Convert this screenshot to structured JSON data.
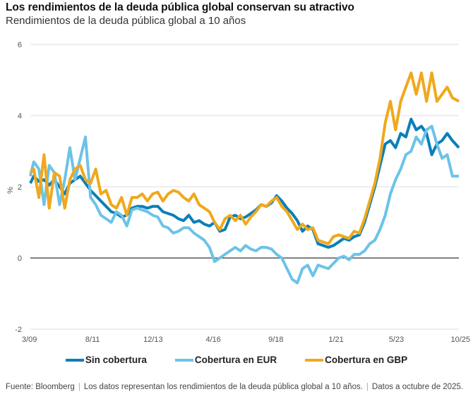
{
  "header": {
    "title": "Los rendimientos de la deuda pública global conservan su atractivo",
    "subtitle": "Rendimientos de la deuda pública global a 10 años"
  },
  "footer": {
    "source": "Fuente: Bloomberg",
    "note": "Los datos representan los rendimientos de la deuda pública global a 10 años.",
    "date": "Datos a octubre de 2025."
  },
  "chart_data": {
    "type": "line",
    "title": "Los rendimientos de la deuda pública global conservan su atractivo",
    "subtitle": "Rendimientos de la deuda pública global a 10 años",
    "xlabel": "",
    "ylabel": "%",
    "ylim": [
      -2,
      6
    ],
    "xlim": [
      2009.17,
      2025.75
    ],
    "yticks": [
      -2,
      0,
      2,
      4,
      6
    ],
    "ytick_labels": [
      "-2",
      "0",
      "2",
      "4",
      "6"
    ],
    "xticks": [
      2009.17,
      2011.58,
      2013.92,
      2016.25,
      2018.67,
      2021.0,
      2023.33,
      2025.75
    ],
    "xtick_labels": [
      "3/09",
      "8/11",
      "12/13",
      "4/16",
      "9/18",
      "1/21",
      "5/23",
      "10/25"
    ],
    "grid": true,
    "legend": "bottom-center",
    "series": [
      {
        "name": "Sin cobertura",
        "color": "#0a7fb9",
        "x": [
          2009.17,
          2009.3,
          2009.5,
          2009.7,
          2009.9,
          2010.1,
          2010.3,
          2010.5,
          2010.7,
          2010.9,
          2011.1,
          2011.3,
          2011.5,
          2011.7,
          2011.9,
          2012.1,
          2012.3,
          2012.5,
          2012.7,
          2012.9,
          2013.1,
          2013.3,
          2013.5,
          2013.7,
          2013.9,
          2014.1,
          2014.3,
          2014.5,
          2014.7,
          2014.9,
          2015.1,
          2015.3,
          2015.5,
          2015.7,
          2015.9,
          2016.1,
          2016.3,
          2016.5,
          2016.7,
          2016.9,
          2017.1,
          2017.3,
          2017.5,
          2017.7,
          2017.9,
          2018.1,
          2018.3,
          2018.5,
          2018.7,
          2018.9,
          2019.1,
          2019.3,
          2019.5,
          2019.7,
          2019.9,
          2020.1,
          2020.3,
          2020.5,
          2020.7,
          2020.9,
          2021.1,
          2021.3,
          2021.5,
          2021.7,
          2021.9,
          2022.1,
          2022.3,
          2022.5,
          2022.7,
          2022.9,
          2023.1,
          2023.3,
          2023.5,
          2023.7,
          2023.9,
          2024.1,
          2024.3,
          2024.5,
          2024.7,
          2024.9,
          2025.1,
          2025.3,
          2025.5,
          2025.75
        ],
        "values": [
          2.1,
          2.3,
          2.15,
          2.2,
          2.05,
          2.2,
          2.0,
          1.8,
          2.1,
          2.2,
          2.3,
          2.1,
          1.9,
          1.75,
          1.6,
          1.45,
          1.3,
          1.25,
          1.15,
          1.2,
          1.4,
          1.45,
          1.45,
          1.4,
          1.45,
          1.45,
          1.3,
          1.25,
          1.2,
          1.1,
          1.05,
          1.2,
          1.0,
          1.05,
          0.95,
          0.9,
          1.0,
          0.75,
          0.8,
          1.15,
          1.2,
          1.1,
          1.15,
          1.25,
          1.35,
          1.5,
          1.45,
          1.55,
          1.75,
          1.6,
          1.4,
          1.25,
          1.05,
          0.75,
          0.9,
          0.8,
          0.4,
          0.35,
          0.3,
          0.35,
          0.45,
          0.55,
          0.5,
          0.6,
          0.65,
          1.0,
          1.5,
          2.0,
          2.6,
          3.2,
          3.3,
          3.1,
          3.5,
          3.4,
          3.9,
          3.6,
          3.7,
          3.5,
          2.9,
          3.2,
          3.3,
          3.5,
          3.3,
          3.1
        ]
      },
      {
        "name": "Cobertura en EUR",
        "color": "#6cc3e8",
        "x": [
          2009.17,
          2009.3,
          2009.5,
          2009.7,
          2009.9,
          2010.1,
          2010.3,
          2010.5,
          2010.7,
          2010.9,
          2011.1,
          2011.3,
          2011.5,
          2011.7,
          2011.9,
          2012.1,
          2012.3,
          2012.5,
          2012.7,
          2012.9,
          2013.1,
          2013.3,
          2013.5,
          2013.7,
          2013.9,
          2014.1,
          2014.3,
          2014.5,
          2014.7,
          2014.9,
          2015.1,
          2015.3,
          2015.5,
          2015.7,
          2015.9,
          2016.1,
          2016.3,
          2016.5,
          2016.7,
          2016.9,
          2017.1,
          2017.3,
          2017.5,
          2017.7,
          2017.9,
          2018.1,
          2018.3,
          2018.5,
          2018.7,
          2018.9,
          2019.1,
          2019.3,
          2019.5,
          2019.7,
          2019.9,
          2020.1,
          2020.3,
          2020.5,
          2020.7,
          2020.9,
          2021.1,
          2021.3,
          2021.5,
          2021.7,
          2021.9,
          2022.1,
          2022.3,
          2022.5,
          2022.7,
          2022.9,
          2023.1,
          2023.3,
          2023.5,
          2023.7,
          2023.9,
          2024.1,
          2024.3,
          2024.5,
          2024.7,
          2024.9,
          2025.1,
          2025.3,
          2025.5,
          2025.75
        ],
        "values": [
          2.3,
          2.7,
          2.5,
          1.5,
          2.6,
          2.4,
          1.5,
          2.2,
          3.1,
          2.2,
          2.8,
          3.4,
          1.7,
          1.5,
          1.2,
          1.1,
          1.0,
          1.3,
          1.2,
          0.9,
          1.35,
          1.4,
          1.35,
          1.3,
          1.2,
          1.15,
          0.9,
          0.85,
          0.7,
          0.75,
          0.85,
          0.85,
          0.7,
          0.6,
          0.5,
          0.3,
          -0.1,
          0.0,
          0.1,
          0.2,
          0.3,
          0.2,
          0.35,
          0.25,
          0.2,
          0.3,
          0.3,
          0.25,
          0.1,
          0.0,
          -0.3,
          -0.6,
          -0.7,
          -0.3,
          -0.2,
          -0.5,
          -0.2,
          -0.25,
          -0.3,
          -0.15,
          0.0,
          0.05,
          -0.05,
          0.1,
          0.1,
          0.2,
          0.4,
          0.5,
          0.8,
          1.2,
          1.8,
          2.2,
          2.5,
          2.9,
          3.0,
          3.4,
          3.2,
          3.6,
          3.7,
          3.2,
          2.8,
          2.9,
          2.3,
          2.3
        ]
      },
      {
        "name": "Cobertura en GBP",
        "color": "#f0a81c",
        "x": [
          2009.17,
          2009.3,
          2009.5,
          2009.7,
          2009.9,
          2010.1,
          2010.3,
          2010.5,
          2010.7,
          2010.9,
          2011.1,
          2011.3,
          2011.5,
          2011.7,
          2011.9,
          2012.1,
          2012.3,
          2012.5,
          2012.7,
          2012.9,
          2013.1,
          2013.3,
          2013.5,
          2013.7,
          2013.9,
          2014.1,
          2014.3,
          2014.5,
          2014.7,
          2014.9,
          2015.1,
          2015.3,
          2015.5,
          2015.7,
          2015.9,
          2016.1,
          2016.3,
          2016.5,
          2016.7,
          2016.9,
          2017.1,
          2017.3,
          2017.5,
          2017.7,
          2017.9,
          2018.1,
          2018.3,
          2018.5,
          2018.7,
          2018.9,
          2019.1,
          2019.3,
          2019.5,
          2019.7,
          2019.9,
          2020.1,
          2020.3,
          2020.5,
          2020.7,
          2020.9,
          2021.1,
          2021.3,
          2021.5,
          2021.7,
          2021.9,
          2022.1,
          2022.3,
          2022.5,
          2022.7,
          2022.9,
          2023.1,
          2023.3,
          2023.5,
          2023.7,
          2023.9,
          2024.1,
          2024.3,
          2024.5,
          2024.7,
          2024.9,
          2025.1,
          2025.3,
          2025.5,
          2025.75
        ],
        "values": [
          2.4,
          2.5,
          1.7,
          2.9,
          1.4,
          2.4,
          2.3,
          1.4,
          2.2,
          2.5,
          2.6,
          2.2,
          2.1,
          2.5,
          1.8,
          1.9,
          1.5,
          1.4,
          1.7,
          1.2,
          1.7,
          1.7,
          1.8,
          1.6,
          1.8,
          1.85,
          1.6,
          1.8,
          1.9,
          1.85,
          1.7,
          1.6,
          1.8,
          1.5,
          1.4,
          1.3,
          1.0,
          0.8,
          1.1,
          1.2,
          1.05,
          1.2,
          0.95,
          1.15,
          1.3,
          1.5,
          1.45,
          1.6,
          1.7,
          1.45,
          1.3,
          1.05,
          0.8,
          0.95,
          0.8,
          0.85,
          0.5,
          0.45,
          0.4,
          0.6,
          0.65,
          0.6,
          0.55,
          0.75,
          0.7,
          1.1,
          1.6,
          2.1,
          2.8,
          3.8,
          4.4,
          3.6,
          4.4,
          4.8,
          5.2,
          4.6,
          5.2,
          4.4,
          5.2,
          4.4,
          4.6,
          4.8,
          4.5,
          4.4
        ]
      }
    ]
  }
}
